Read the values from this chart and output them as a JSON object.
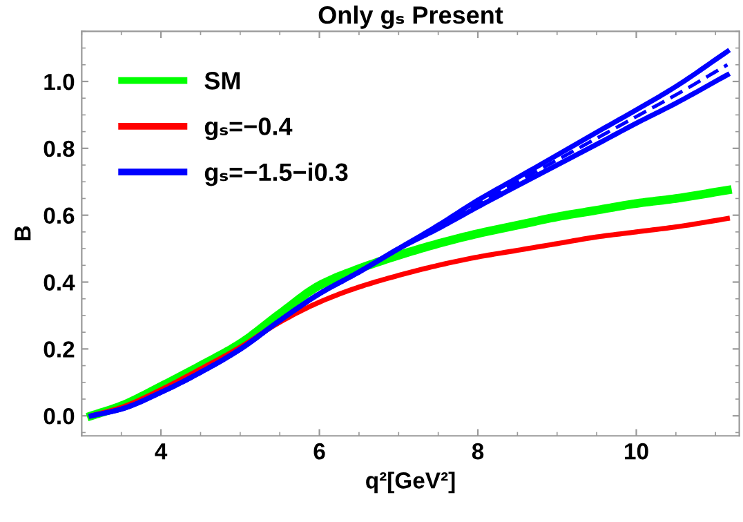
{
  "chart_data": {
    "type": "line",
    "title": "Only gₛ Present",
    "xlabel": "q²[GeV²]",
    "ylabel": "B",
    "x": [
      3.12,
      3.5,
      4,
      4.5,
      5,
      5.5,
      6,
      6.5,
      7,
      7.5,
      8,
      8.5,
      9,
      9.5,
      10,
      10.5,
      11.15
    ],
    "series": [
      {
        "name": "SM",
        "color": "#00ff00",
        "values": [
          0,
          0.03,
          0.088,
          0.15,
          0.216,
          0.305,
          0.39,
          0.44,
          0.48,
          0.515,
          0.545,
          0.57,
          0.595,
          0.615,
          0.635,
          0.65,
          0.675
        ]
      },
      {
        "name": "gₛ=−0.4",
        "color": "#ff0000",
        "values": [
          0,
          0.025,
          0.078,
          0.14,
          0.205,
          0.28,
          0.34,
          0.385,
          0.42,
          0.45,
          0.475,
          0.495,
          0.515,
          0.535,
          0.55,
          0.565,
          0.59
        ]
      },
      {
        "name": "gₛ=−1.5−i0.3",
        "color": "#0000ff",
        "values": [
          0,
          0.02,
          0.07,
          0.13,
          0.199,
          0.285,
          0.365,
          0.43,
          0.5,
          0.57,
          0.645,
          0.712,
          0.78,
          0.848,
          0.915,
          0.985,
          1.09
        ]
      },
      {
        "color": "#0000ff",
        "values": [
          0,
          0.02,
          0.07,
          0.13,
          0.199,
          0.285,
          0.365,
          0.43,
          0.5,
          0.56,
          0.625,
          0.688,
          0.75,
          0.812,
          0.875,
          0.935,
          1.02
        ]
      },
      {
        "color": "#0000ff",
        "line_style": "dashed",
        "values": [
          0,
          0.02,
          0.07,
          0.13,
          0.199,
          0.285,
          0.365,
          0.43,
          0.5,
          0.565,
          0.635,
          0.7,
          0.765,
          0.83,
          0.895,
          0.96,
          1.05
        ]
      }
    ],
    "xlim": [
      3.0,
      11.3
    ],
    "ylim": [
      -0.06,
      1.15
    ],
    "xticks": [
      4,
      6,
      8,
      10
    ],
    "yticks": [
      {
        "value": 0,
        "label": "0.0"
      },
      {
        "value": 0.2,
        "label": "0.2"
      },
      {
        "value": 0.4,
        "label": "0.4"
      },
      {
        "value": 0.6,
        "label": "0.6"
      },
      {
        "value": 0.8,
        "label": "0.8"
      },
      {
        "value": 1.0,
        "label": "1.0"
      }
    ],
    "legend": "top left",
    "grid": false
  }
}
